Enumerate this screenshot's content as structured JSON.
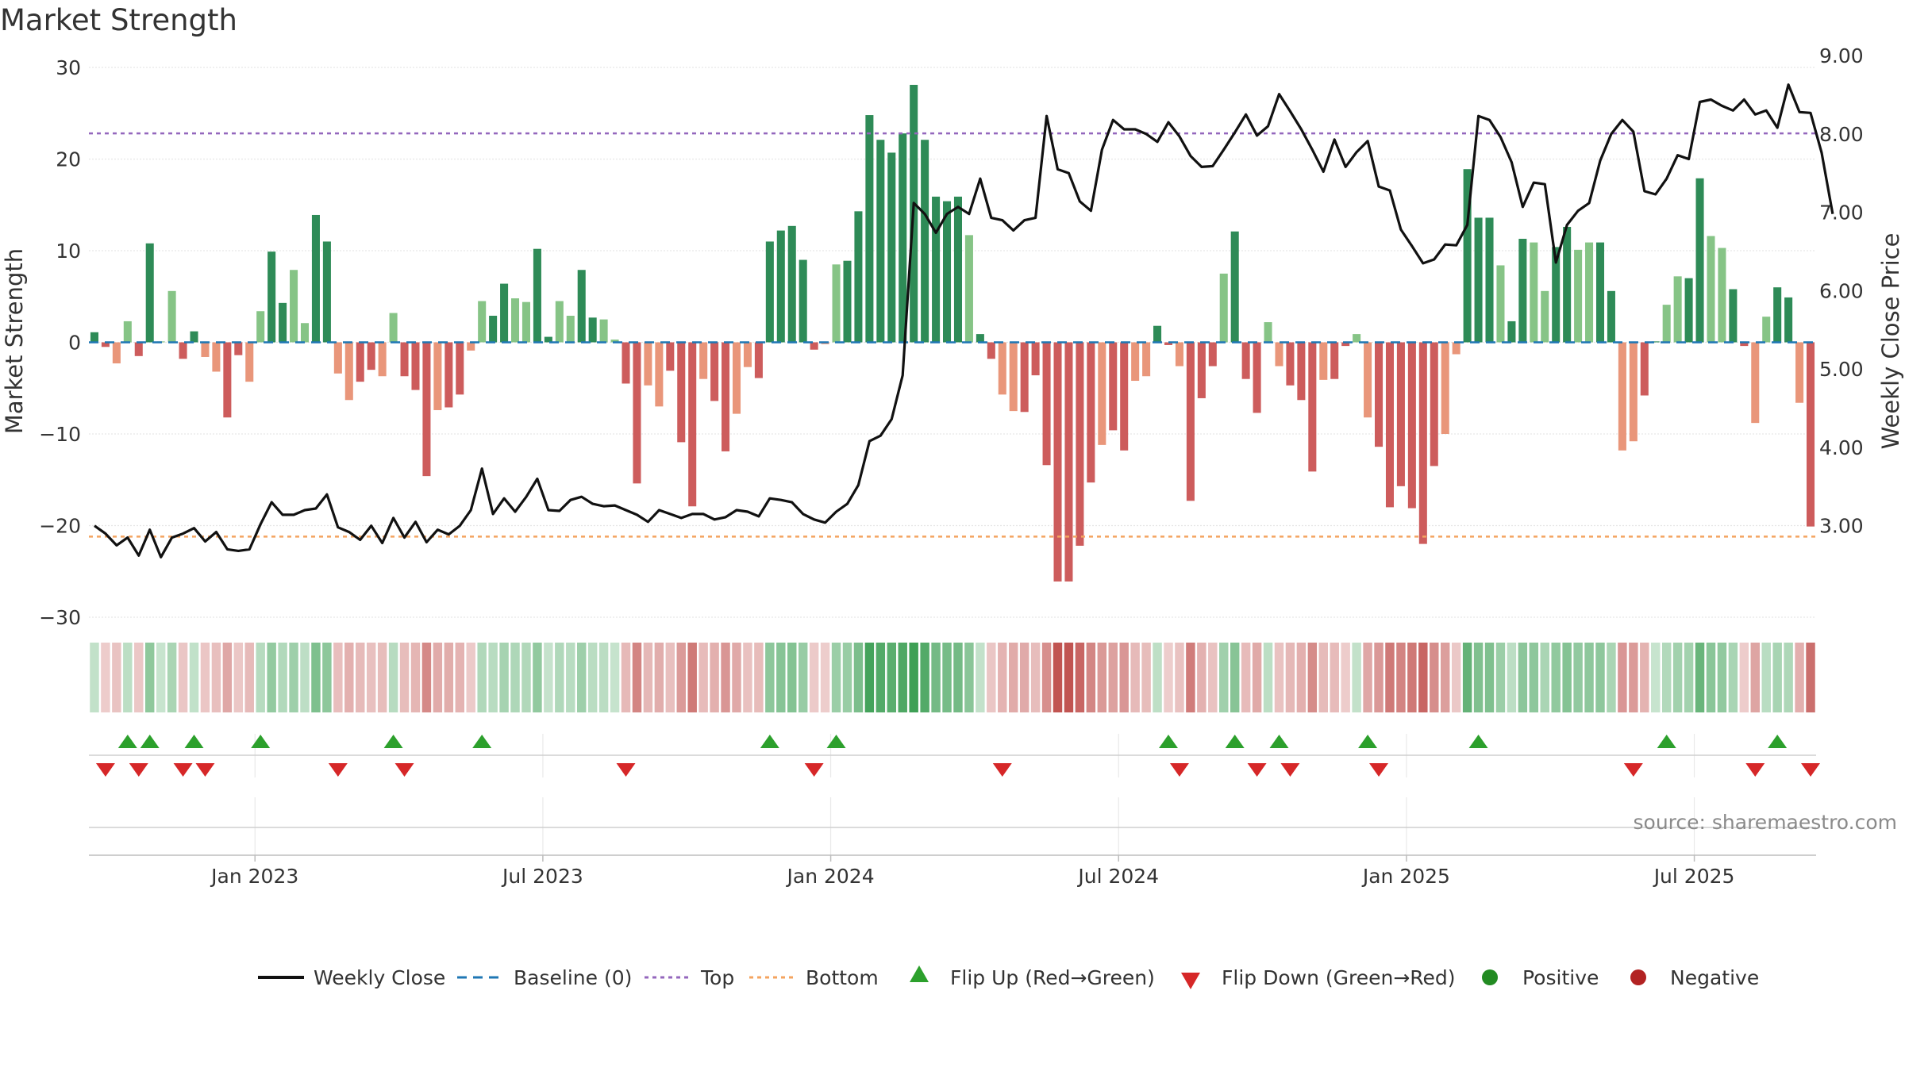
{
  "chart_data": {
    "type": "bar",
    "title": "Market Strength",
    "ylabel": "Market Strength",
    "y2label": "Weekly Close Price",
    "ylim": [
      -30,
      30
    ],
    "y2lim": [
      1.833,
      8.85
    ],
    "yticks": [
      "30",
      "20",
      "10",
      "0",
      "−10",
      "−20",
      "−30"
    ],
    "y2ticks": [
      "9.00",
      "8.00",
      "7.00",
      "6.00",
      "5.00",
      "4.00",
      "3.00"
    ],
    "x_labels": [
      "Jan 2023",
      "Jul 2023",
      "Jan 2024",
      "Jul 2024",
      "Jan 2025",
      "Jul 2025"
    ],
    "x_label_weeks": [
      15,
      41,
      67,
      93,
      119,
      145
    ],
    "top_line": 22.8,
    "bottom_line": -21.2,
    "source": "source: sharemaestro.com",
    "strength": [
      1.1,
      -0.5,
      -2.3,
      2.3,
      -1.5,
      10.8,
      0.1,
      5.6,
      -1.8,
      1.2,
      -1.6,
      -3.2,
      -8.2,
      -1.4,
      -4.3,
      3.4,
      9.9,
      4.3,
      7.9,
      2.1,
      13.9,
      11.0,
      -3.4,
      -6.3,
      -4.3,
      -3.0,
      -3.7,
      3.2,
      -3.7,
      -5.2,
      -14.6,
      -7.4,
      -7.1,
      -5.7,
      -0.9,
      4.5,
      2.9,
      6.4,
      4.8,
      4.4,
      10.2,
      0.6,
      4.5,
      2.9,
      7.9,
      2.7,
      2.5,
      0.3,
      -4.5,
      -15.4,
      -4.7,
      -7.0,
      -3.1,
      -10.9,
      -17.9,
      -4.0,
      -6.4,
      -11.9,
      -7.8,
      -2.7,
      -3.9,
      11.0,
      12.2,
      12.7,
      9.0,
      -0.8,
      -0.2,
      8.5,
      8.9,
      14.3,
      24.8,
      22.1,
      20.7,
      22.8,
      28.1,
      22.1,
      15.9,
      15.4,
      15.9,
      11.7,
      0.9,
      -1.8,
      -5.7,
      -7.5,
      -7.6,
      -3.6,
      -13.4,
      -26.1,
      -26.1,
      -22.2,
      -15.3,
      -11.2,
      -9.6,
      -11.8,
      -4.2,
      -3.7,
      1.8,
      -0.3,
      -2.6,
      -17.3,
      -6.1,
      -2.6,
      7.5,
      12.1,
      -4.0,
      -7.7,
      2.2,
      -2.6,
      -4.7,
      -6.3,
      -14.1,
      -4.1,
      -4.0,
      -0.4,
      0.9,
      -8.2,
      -11.4,
      -18.0,
      -15.7,
      -18.1,
      -22.0,
      -13.5,
      -10.0,
      -1.3,
      18.9,
      13.6,
      13.6,
      8.4,
      2.3,
      11.3,
      10.9,
      5.6,
      10.4,
      12.6,
      10.1,
      10.9,
      10.9,
      5.6,
      -11.8,
      -10.8,
      -5.8,
      0.1,
      4.1,
      7.2,
      7.0,
      17.9,
      11.6,
      10.3,
      5.8,
      -0.4,
      -8.8,
      2.8,
      6.0,
      4.9,
      -6.6,
      -20.1
    ],
    "weekly_close": [
      3.0,
      2.9,
      2.75,
      2.85,
      2.62,
      2.95,
      2.6,
      2.85,
      2.9,
      2.97,
      2.8,
      2.92,
      2.7,
      2.68,
      2.7,
      3.02,
      3.3,
      3.14,
      3.14,
      3.2,
      3.22,
      3.4,
      2.98,
      2.92,
      2.82,
      3.0,
      2.78,
      3.1,
      2.85,
      3.05,
      2.79,
      2.95,
      2.89,
      3.0,
      3.2,
      3.73,
      3.15,
      3.35,
      3.18,
      3.37,
      3.6,
      3.2,
      3.19,
      3.33,
      3.37,
      3.28,
      3.25,
      3.26,
      3.2,
      3.14,
      3.05,
      3.2,
      3.15,
      3.1,
      3.15,
      3.15,
      3.08,
      3.11,
      3.2,
      3.18,
      3.12,
      3.35,
      3.33,
      3.3,
      3.15,
      3.08,
      3.04,
      3.18,
      3.28,
      3.52,
      4.08,
      4.15,
      4.36,
      4.92,
      7.12,
      6.98,
      6.74,
      6.98,
      7.07,
      6.98,
      7.43,
      6.93,
      6.9,
      6.77,
      6.9,
      6.93,
      8.23,
      7.55,
      7.5,
      7.14,
      7.02,
      7.8,
      8.18,
      8.06,
      8.06,
      8.0,
      7.9,
      8.15,
      7.97,
      7.72,
      7.58,
      7.59,
      7.8,
      8.02,
      8.25,
      7.98,
      8.1,
      8.51,
      8.29,
      8.06,
      7.8,
      7.52,
      7.93,
      7.58,
      7.77,
      7.91,
      7.33,
      7.28,
      6.78,
      6.57,
      6.35,
      6.4,
      6.59,
      6.58,
      6.84,
      8.23,
      8.18,
      7.96,
      7.64,
      7.07,
      7.38,
      7.36,
      6.36,
      6.84,
      7.02,
      7.12,
      7.66,
      8.0,
      8.18,
      8.03,
      7.27,
      7.23,
      7.43,
      7.73,
      7.68,
      8.41,
      8.44,
      8.36,
      8.3,
      8.44,
      8.25,
      8.3,
      8.08,
      8.63,
      8.28,
      8.27,
      7.76,
      6.98
    ],
    "flip_up_weeks": [
      3,
      5,
      9,
      15,
      27,
      35,
      61,
      67,
      97,
      103,
      107,
      115,
      125,
      142,
      152
    ],
    "flip_down_weeks": [
      1,
      4,
      8,
      10,
      22,
      28,
      48,
      65,
      82,
      98,
      105,
      108,
      116,
      139,
      150,
      155
    ],
    "legend": {
      "weekly_close": "Weekly Close",
      "baseline": "Baseline (0)",
      "top": "Top",
      "bottom": "Bottom",
      "flip_up": "Flip Up (Red→Green)",
      "flip_down": "Flip Down (Green→Red)",
      "positive": "Positive",
      "negative": "Negative"
    },
    "colors": {
      "pos_strong": "#2e8b57",
      "pos_light": "#86c486",
      "neg_strong": "#cd5c5c",
      "neg_light": "#e9967a",
      "line": "#111111",
      "baseline": "#1f77b4",
      "top": "#9467bd",
      "bottom": "#f4a460",
      "flip_up": "#2ca02c",
      "flip_down": "#d62728",
      "positive_dot": "#228b22",
      "negative_dot": "#b22222"
    }
  }
}
